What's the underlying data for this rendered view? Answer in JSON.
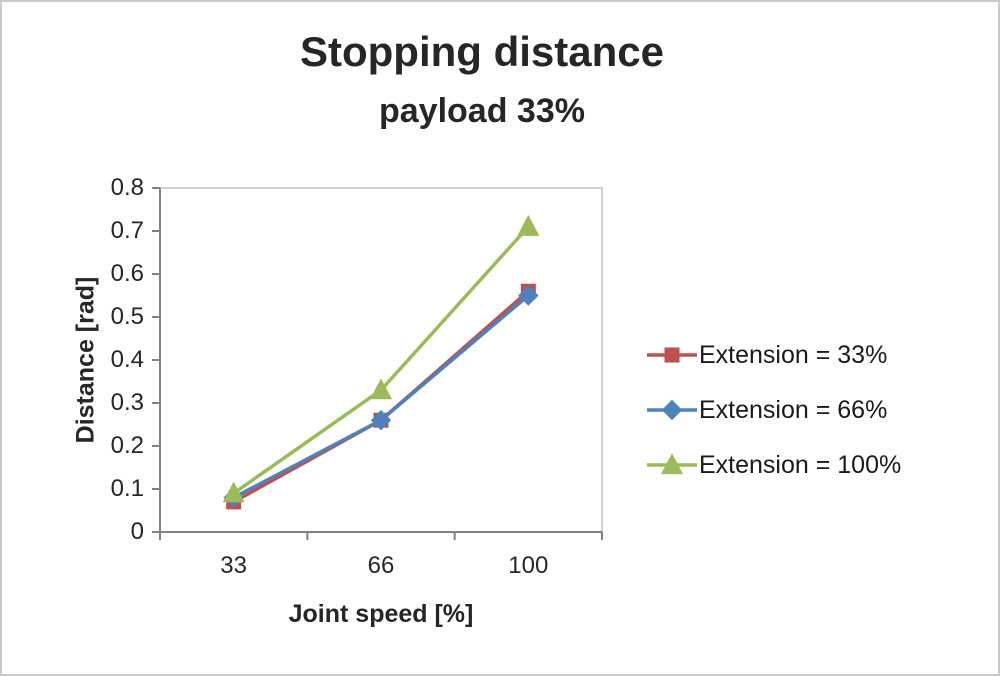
{
  "chart_data": {
    "type": "line",
    "title": "Stopping distance",
    "subtitle": "payload 33%",
    "xlabel": "Joint speed [%]",
    "ylabel": "Distance [rad]",
    "categories": [
      "33",
      "66",
      "100"
    ],
    "series": [
      {
        "name": "Extension = 33%",
        "values": [
          0.07,
          0.26,
          0.56
        ],
        "color": "#C0504D",
        "marker": "square"
      },
      {
        "name": "Extension = 66%",
        "values": [
          0.08,
          0.26,
          0.55
        ],
        "color": "#4F81BD",
        "marker": "diamond"
      },
      {
        "name": "Extension = 100%",
        "values": [
          0.09,
          0.33,
          0.71
        ],
        "color": "#9BBB59",
        "marker": "triangle"
      }
    ],
    "ylim": [
      0,
      0.8
    ],
    "ytick_step": 0.1,
    "grid": false,
    "legend_position": "right",
    "axis_color": "#808080",
    "plot_border_color": "#bfbfbf"
  }
}
